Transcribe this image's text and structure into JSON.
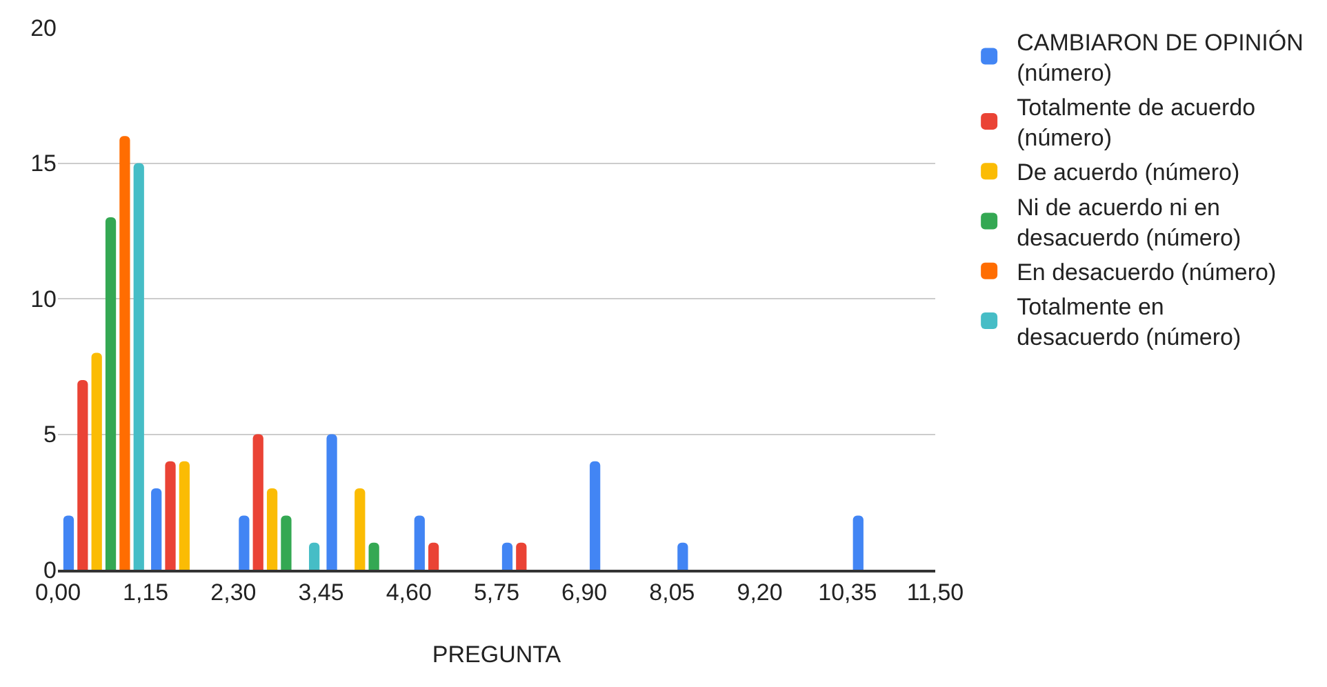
{
  "chart_data": {
    "type": "bar",
    "xlabel": "PREGUNTA",
    "x": [
      0.6,
      1.75,
      2.9,
      4.05,
      5.2,
      6.35,
      7.5,
      8.65,
      10.95
    ],
    "series": [
      {
        "name": "CAMBIARON DE OPINIÓN (número)",
        "color": "#4285f4",
        "values": [
          2,
          3,
          2,
          5,
          2,
          1,
          4,
          1,
          2
        ]
      },
      {
        "name": "Totalmente de acuerdo (número)",
        "color": "#ea4335",
        "values": [
          7,
          4,
          5,
          null,
          1,
          1,
          null,
          null,
          null
        ]
      },
      {
        "name": "De acuerdo (número)",
        "color": "#fbbc04",
        "values": [
          8,
          4,
          3,
          3,
          null,
          null,
          null,
          null,
          null
        ]
      },
      {
        "name": "Ni de acuerdo ni en desacuerdo (número)",
        "color": "#34a853",
        "values": [
          13,
          null,
          2,
          1,
          null,
          null,
          null,
          null,
          null
        ]
      },
      {
        "name": "En desacuerdo (número)",
        "color": "#ff6d01",
        "values": [
          16,
          null,
          null,
          null,
          null,
          null,
          null,
          null,
          null
        ]
      },
      {
        "name": "Totalmente en desacuerdo (número)",
        "color": "#46bdc6",
        "values": [
          15,
          null,
          1,
          null,
          null,
          null,
          null,
          null,
          null
        ]
      }
    ],
    "xlim": [
      0,
      11.5
    ],
    "xticks": [
      {
        "value": 0,
        "label": "0,00"
      },
      {
        "value": 1.15,
        "label": "1,15"
      },
      {
        "value": 2.3,
        "label": "2,30"
      },
      {
        "value": 3.45,
        "label": "3,45"
      },
      {
        "value": 4.6,
        "label": "4,60"
      },
      {
        "value": 5.75,
        "label": "5,75"
      },
      {
        "value": 6.9,
        "label": "6,90"
      },
      {
        "value": 8.05,
        "label": "8,05"
      },
      {
        "value": 9.2,
        "label": "9,20"
      },
      {
        "value": 10.35,
        "label": "10,35"
      },
      {
        "value": 11.5,
        "label": "11,50"
      }
    ],
    "ylim": [
      0,
      20
    ],
    "yticks": [
      0,
      5,
      10,
      15,
      20
    ],
    "grid": "y",
    "legend": "right"
  }
}
